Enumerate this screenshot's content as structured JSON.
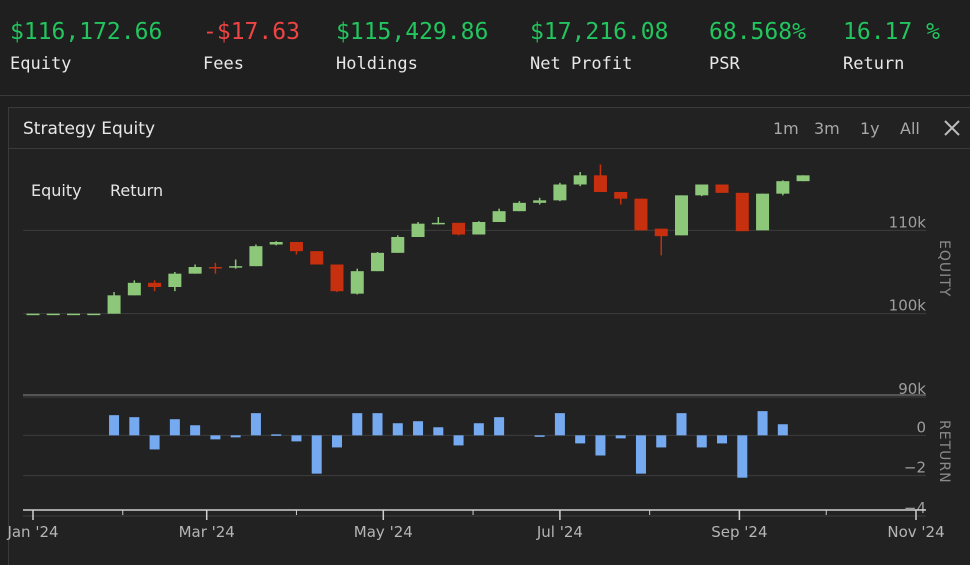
{
  "stats": [
    {
      "value": "$116,172.66",
      "label": "Equity",
      "color": "#22c55e"
    },
    {
      "value": "-$17.63",
      "label": "Fees",
      "color": "#ef4444"
    },
    {
      "value": "$115,429.86",
      "label": "Holdings",
      "color": "#22c55e"
    },
    {
      "value": "$17,216.08",
      "label": "Net Profit",
      "color": "#22c55e"
    },
    {
      "value": "68.568%",
      "label": "PSR",
      "color": "#22c55e"
    },
    {
      "value": "16.17 %",
      "label": "Return",
      "color": "#22c55e"
    }
  ],
  "panel": {
    "title": "Strategy Equity",
    "ranges": [
      "1m",
      "3m",
      "1y",
      "All"
    ],
    "close_icon": "close-icon",
    "legend": [
      "Equity",
      "Return"
    ]
  },
  "colors": {
    "up": "#8dc87a",
    "down": "#c7300f",
    "bar": "#76aaf0"
  },
  "chart_data": [
    {
      "type": "candlestick",
      "ylabel": "EQUITY",
      "ylim": [
        90000,
        120000
      ],
      "y_ticks": [
        "110k",
        "100k",
        "90k"
      ],
      "y_tick_values": [
        110000,
        100000,
        90000
      ],
      "grid": true,
      "x": [
        "2024-01-01",
        "2024-01-08",
        "2024-01-15",
        "2024-01-22",
        "2024-01-29",
        "2024-02-05",
        "2024-02-12",
        "2024-02-19",
        "2024-02-26",
        "2024-03-04",
        "2024-03-11",
        "2024-03-18",
        "2024-03-25",
        "2024-04-01",
        "2024-04-08",
        "2024-04-15",
        "2024-04-22",
        "2024-04-29",
        "2024-05-06",
        "2024-05-13",
        "2024-05-20",
        "2024-05-27",
        "2024-06-03",
        "2024-06-10",
        "2024-06-17",
        "2024-06-24",
        "2024-07-01",
        "2024-07-08",
        "2024-07-15",
        "2024-07-22",
        "2024-07-29",
        "2024-08-05",
        "2024-08-12",
        "2024-08-19",
        "2024-08-26",
        "2024-09-02",
        "2024-09-09",
        "2024-09-16",
        "2024-09-23"
      ],
      "ohlc": [
        [
          100000,
          100000,
          100000,
          100000
        ],
        [
          100000,
          100000,
          100000,
          100000
        ],
        [
          100000,
          100000,
          100000,
          100000
        ],
        [
          100000,
          100000,
          100000,
          100000
        ],
        [
          100000,
          102600,
          100000,
          102200
        ],
        [
          102200,
          104000,
          102200,
          103700
        ],
        [
          103700,
          104000,
          102700,
          103200
        ],
        [
          103200,
          105000,
          102700,
          104800
        ],
        [
          104800,
          105900,
          104800,
          105600
        ],
        [
          105600,
          106100,
          104800,
          105500
        ],
        [
          105600,
          106500,
          105400,
          105700
        ],
        [
          105700,
          108300,
          105700,
          108100
        ],
        [
          108300,
          108700,
          108200,
          108600
        ],
        [
          108600,
          108600,
          107100,
          107500
        ],
        [
          107500,
          107500,
          105900,
          105900
        ],
        [
          105900,
          105900,
          102600,
          102700
        ],
        [
          102400,
          105400,
          102300,
          105100
        ],
        [
          105100,
          107400,
          105100,
          107300
        ],
        [
          107300,
          109400,
          107300,
          109200
        ],
        [
          109200,
          111000,
          109200,
          110800
        ],
        [
          110800,
          111600,
          110700,
          110900
        ],
        [
          110900,
          110900,
          109400,
          109500
        ],
        [
          109500,
          111100,
          109500,
          111000
        ],
        [
          111000,
          112600,
          111000,
          112300
        ],
        [
          112300,
          113500,
          112300,
          113300
        ],
        [
          113300,
          113900,
          113100,
          113600
        ],
        [
          113600,
          115700,
          113500,
          115500
        ],
        [
          115500,
          117000,
          115300,
          116600
        ],
        [
          116600,
          117900,
          114600,
          114600
        ],
        [
          114600,
          114600,
          113100,
          113800
        ],
        [
          113800,
          113800,
          110000,
          110000
        ],
        [
          110200,
          110200,
          107000,
          109300
        ],
        [
          109400,
          114200,
          109400,
          114200
        ],
        [
          114200,
          115500,
          114100,
          115500
        ],
        [
          115500,
          115500,
          114500,
          114500
        ],
        [
          114500,
          114500,
          109900,
          109900
        ],
        [
          110000,
          114400,
          110000,
          114400
        ],
        [
          114400,
          116000,
          114200,
          115900
        ],
        [
          115900,
          116600,
          115900,
          116600
        ]
      ]
    },
    {
      "type": "bar",
      "ylabel": "RETURN",
      "ylim": [
        -4,
        2
      ],
      "y_ticks": [
        "0",
        "−2",
        "−4"
      ],
      "y_tick_values": [
        0,
        -2,
        -4
      ],
      "values": [
        0,
        0,
        0,
        0,
        1.0,
        0.9,
        -0.7,
        0.8,
        0.5,
        -0.2,
        -0.1,
        1.1,
        0.05,
        -0.3,
        -1.9,
        -0.6,
        1.1,
        1.1,
        0.6,
        0.7,
        0.4,
        -0.5,
        0.6,
        0.9,
        0,
        -0.05,
        1.1,
        -0.4,
        -1.0,
        -0.15,
        -1.9,
        -0.6,
        1.1,
        -0.6,
        -0.4,
        -2.1,
        1.2,
        0.55,
        0
      ]
    }
  ],
  "x_axis": {
    "tick_labels": [
      "Jan '24",
      "Mar '24",
      "May '24",
      "Jul '24",
      "Sep '24",
      "Nov '24"
    ],
    "tick_dates": [
      "2024-01-01",
      "2024-03-01",
      "2024-05-01",
      "2024-07-01",
      "2024-09-01",
      "2024-11-01"
    ]
  }
}
